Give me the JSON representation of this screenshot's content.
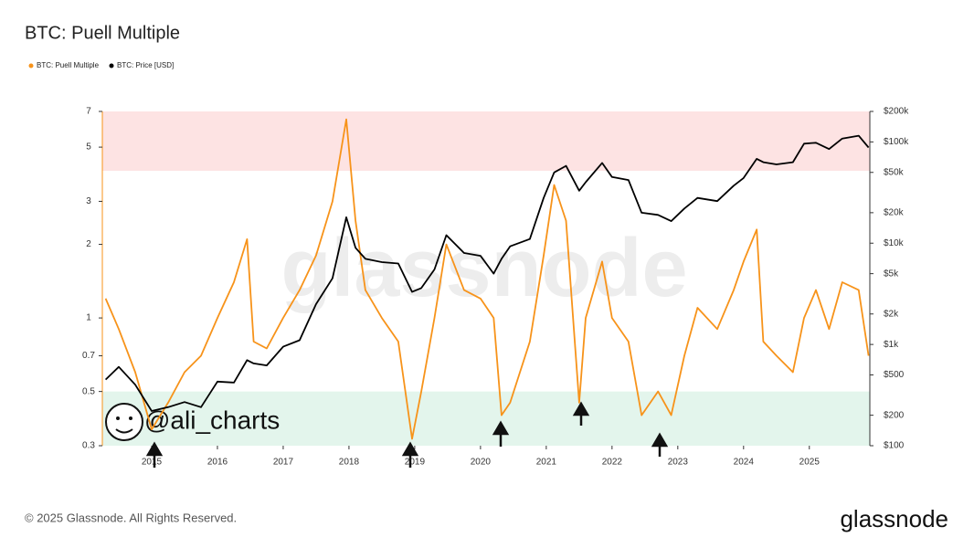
{
  "chart_data": {
    "type": "line",
    "title": "BTC: Puell Multiple",
    "legend": "top-left",
    "log_scale": true,
    "watermark": "glassnode",
    "badge": "@ali_charts",
    "footer": "© 2025 Glassnode. All Rights Reserved.",
    "logo": "glassnode",
    "zones": [
      {
        "from": 4,
        "to": 7,
        "color": "#fde3e3"
      },
      {
        "from": 0.3,
        "to": 0.5,
        "color": "#e3f5ec"
      }
    ],
    "x": [
      2014.3,
      2014.5,
      2014.75,
      2015.0,
      2015.25,
      2015.5,
      2015.75,
      2016.0,
      2016.25,
      2016.45,
      2016.55,
      2016.75,
      2017.0,
      2017.25,
      2017.5,
      2017.75,
      2017.96,
      2018.1,
      2018.25,
      2018.5,
      2018.75,
      2018.96,
      2019.1,
      2019.3,
      2019.48,
      2019.75,
      2020.0,
      2020.2,
      2020.32,
      2020.45,
      2020.75,
      2020.96,
      2021.12,
      2021.3,
      2021.5,
      2021.6,
      2021.85,
      2022.0,
      2022.25,
      2022.45,
      2022.7,
      2022.9,
      2023.1,
      2023.3,
      2023.6,
      2023.85,
      2024.0,
      2024.2,
      2024.3,
      2024.5,
      2024.75,
      2024.92,
      2025.1,
      2025.3,
      2025.5,
      2025.75,
      2025.9
    ],
    "series": [
      {
        "name": "BTC: Puell Multiple",
        "color": "#f7931a",
        "values": [
          1.2,
          0.9,
          0.6,
          0.35,
          0.45,
          0.6,
          0.7,
          1.0,
          1.4,
          2.1,
          0.8,
          0.75,
          1.0,
          1.3,
          1.8,
          3.0,
          6.5,
          2.5,
          1.3,
          1.0,
          0.8,
          0.32,
          0.5,
          1.0,
          2.0,
          1.3,
          1.2,
          1.0,
          0.4,
          0.45,
          0.8,
          1.8,
          3.5,
          2.5,
          0.45,
          1.0,
          1.7,
          1.0,
          0.8,
          0.4,
          0.5,
          0.4,
          0.7,
          1.1,
          0.9,
          1.3,
          1.7,
          2.3,
          0.8,
          0.7,
          0.6,
          1.0,
          1.3,
          0.9,
          1.4,
          1.3,
          0.7
        ]
      },
      {
        "name": "BTC: Price [USD]",
        "color": "#000000",
        "axis": "y2",
        "values": [
          450,
          600,
          400,
          220,
          240,
          270,
          240,
          430,
          420,
          700,
          650,
          620,
          950,
          1100,
          2500,
          4500,
          18000,
          9000,
          7000,
          6500,
          6300,
          3300,
          3600,
          5500,
          12000,
          8000,
          7500,
          5000,
          7000,
          9300,
          11000,
          28000,
          50000,
          58000,
          33000,
          40000,
          62000,
          45000,
          42000,
          20000,
          19000,
          16500,
          22000,
          28000,
          26000,
          37000,
          44000,
          68000,
          63000,
          60000,
          63000,
          96000,
          98000,
          85000,
          108000,
          115000,
          88000
        ]
      }
    ],
    "xlim": [
      2014.25,
      2025.92
    ],
    "xticks": [
      2015,
      2016,
      2017,
      2018,
      2019,
      2020,
      2021,
      2022,
      2023,
      2024,
      2025
    ],
    "ylim": [
      0.3,
      7
    ],
    "yticks": [
      0.3,
      0.5,
      0.7,
      1,
      2,
      3,
      5,
      7
    ],
    "y2lim": [
      100,
      200000
    ],
    "y2ticks": [
      {
        "value": 100,
        "label": "$100"
      },
      {
        "value": 200,
        "label": "$200"
      },
      {
        "value": 500,
        "label": "$500"
      },
      {
        "value": 1000,
        "label": "$1k"
      },
      {
        "value": 2000,
        "label": "$2k"
      },
      {
        "value": 5000,
        "label": "$5k"
      },
      {
        "value": 10000,
        "label": "$10k"
      },
      {
        "value": 20000,
        "label": "$20k"
      },
      {
        "value": 50000,
        "label": "$50k"
      },
      {
        "value": 100000,
        "label": "$100k"
      },
      {
        "value": 200000,
        "label": "$200k"
      }
    ]
  }
}
